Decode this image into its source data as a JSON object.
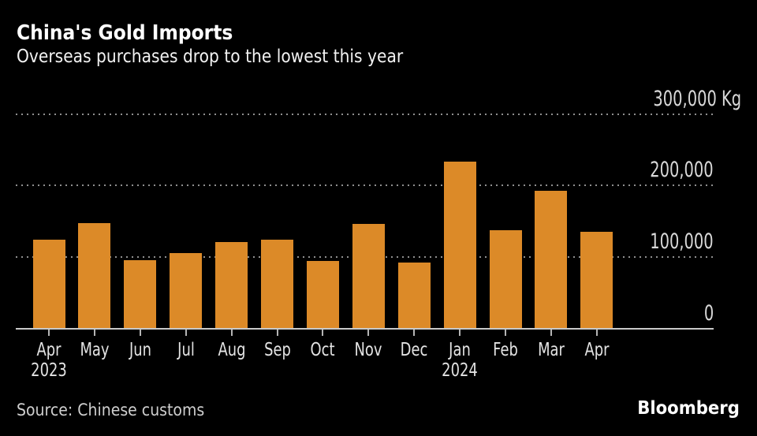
{
  "page": {
    "title": "China's Gold Imports",
    "subtitle": "Overseas purchases drop to the lowest this year",
    "source": "Source: Chinese customs",
    "brand": "Bloomberg"
  },
  "chart_data": {
    "type": "bar",
    "title": "China's Gold Imports",
    "subtitle": "Overseas purchases drop to the lowest this year",
    "unit": "Kg",
    "categories": [
      "Apr",
      "May",
      "Jun",
      "Jul",
      "Aug",
      "Sep",
      "Oct",
      "Nov",
      "Dec",
      "Jan",
      "Feb",
      "Mar",
      "Apr"
    ],
    "category_years": [
      "2023",
      "",
      "",
      "",
      "",
      "",
      "",
      "",
      "",
      "2024",
      "",
      "",
      ""
    ],
    "values": [
      124000,
      148000,
      96000,
      106000,
      121000,
      124000,
      95000,
      146000,
      92000,
      233000,
      138000,
      193000,
      136000
    ],
    "ylim": [
      0,
      300000
    ],
    "yticks": [
      0,
      100000,
      200000,
      300000
    ],
    "ytick_labels": [
      "0",
      "100,000",
      "200,000",
      "300,000"
    ],
    "top_tick_unit_suffix": " Kg",
    "grid": "horizontal-dotted",
    "legend_position": "none",
    "bar_color": "#DC8A28",
    "background_color": "#000000",
    "text_color": "#e3e3e3",
    "source": "Chinese customs"
  }
}
